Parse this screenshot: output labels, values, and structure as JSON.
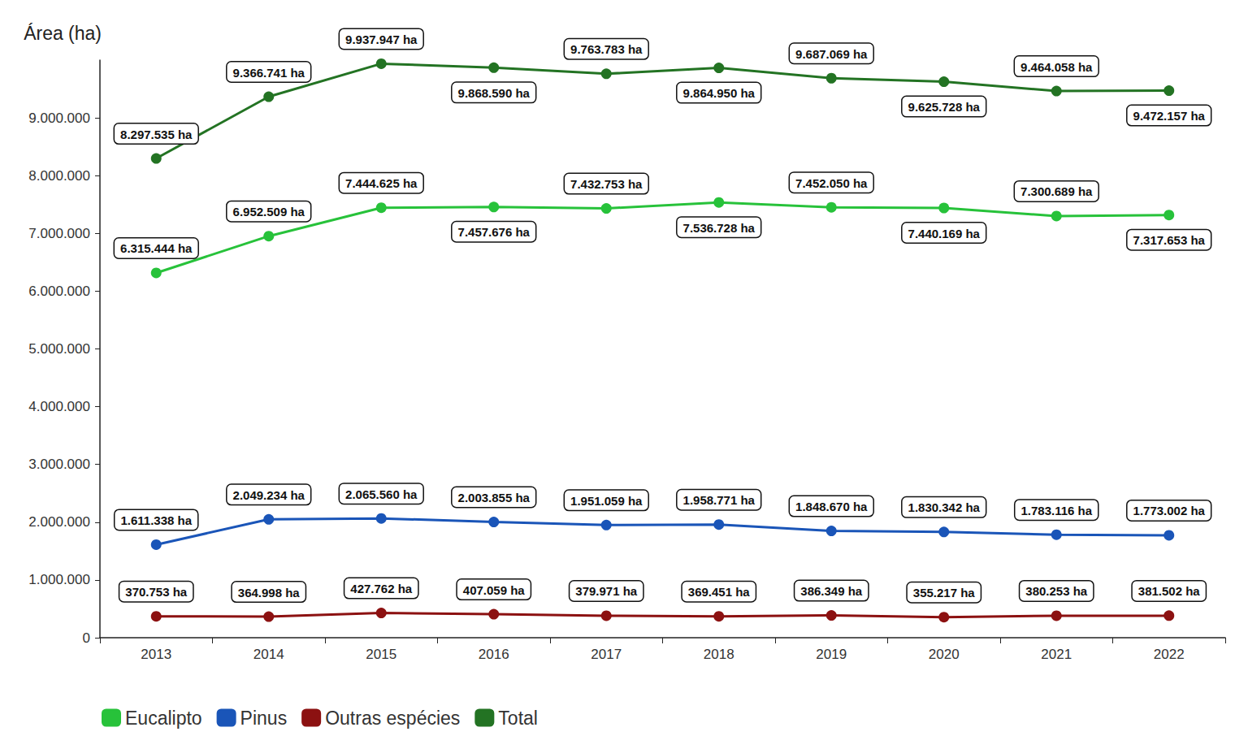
{
  "chart_data": {
    "type": "line",
    "y_label": "Área (ha)",
    "categories": [
      "2013",
      "2014",
      "2015",
      "2016",
      "2017",
      "2018",
      "2019",
      "2020",
      "2021",
      "2022"
    ],
    "ylim": [
      0,
      10000000
    ],
    "yticks": [
      0,
      {
        "value": 1000000,
        "label": "1.000.000"
      },
      {
        "value": 2000000,
        "label": "2.000.000"
      },
      {
        "value": 3000000,
        "label": "3.000.000"
      },
      {
        "value": 4000000,
        "label": "4.000.000"
      },
      {
        "value": 5000000,
        "label": "5.000.000"
      },
      {
        "value": 6000000,
        "label": "6.000.000"
      },
      {
        "value": 7000000,
        "label": "7.000.000"
      },
      {
        "value": 8000000,
        "label": "8.000.000"
      },
      {
        "value": 9000000,
        "label": "9.000.000"
      }
    ],
    "grid": false,
    "legend": "bottom-left",
    "data_labels": true,
    "marker": "circle",
    "series": [
      {
        "name": "Eucalipto",
        "color": "#27c23a",
        "values": [
          6315444,
          6952509,
          7444625,
          7457676,
          7432753,
          7536728,
          7452050,
          7440169,
          7300689,
          7317653
        ],
        "value_labels": [
          "6.315.444 ha",
          "6.952.509 ha",
          "7.444.625 ha",
          "7.457.676 ha",
          "7.432.753 ha",
          "7.536.728 ha",
          "7.452.050 ha",
          "7.440.169 ha",
          "7.300.689 ha",
          "7.317.653 ha"
        ]
      },
      {
        "name": "Pinus",
        "color": "#1a55b8",
        "values": [
          1611338,
          2049234,
          2065560,
          2003855,
          1951059,
          1958771,
          1848670,
          1830342,
          1783116,
          1773002
        ],
        "value_labels": [
          "1.611.338 ha",
          "2.049.234 ha",
          "2.065.560 ha",
          "2.003.855 ha",
          "1.951.059 ha",
          "1.958.771 ha",
          "1.848.670 ha",
          "1.830.342 ha",
          "1.783.116 ha",
          "1.773.002 ha"
        ]
      },
      {
        "name": "Outras espécies",
        "color": "#8c1111",
        "values": [
          370753,
          364998,
          427762,
          407059,
          379971,
          369451,
          386349,
          355217,
          380253,
          381502
        ],
        "value_labels": [
          "370.753 ha",
          "364.998 ha",
          "427.762 ha",
          "407.059 ha",
          "379.971 ha",
          "369.451 ha",
          "386.349 ha",
          "355.217 ha",
          "380.253 ha",
          "381.502 ha"
        ]
      },
      {
        "name": "Total",
        "color": "#237323",
        "values": [
          8297535,
          9366741,
          9937947,
          9868590,
          9763783,
          9864950,
          9687069,
          9625728,
          9464058,
          9472157
        ],
        "value_labels": [
          "8.297.535 ha",
          "9.366.741 ha",
          "9.937.947 ha",
          "9.868.590 ha",
          "9.763.783 ha",
          "9.864.950 ha",
          "9.687.069 ha",
          "9.625.728 ha",
          "9.464.058 ha",
          "9.472.157 ha"
        ]
      }
    ]
  }
}
